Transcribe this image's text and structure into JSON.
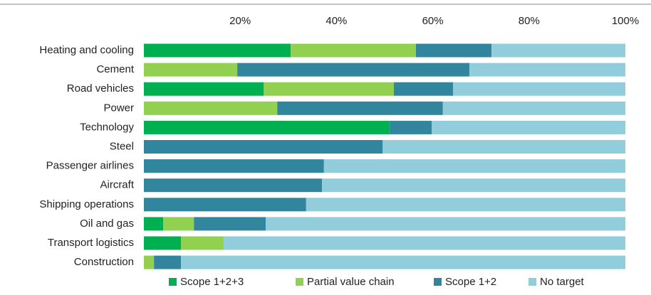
{
  "chart_data": {
    "type": "stacked-bar-horizontal",
    "categories": [
      "Heating and cooling",
      "Cement",
      "Road vehicles",
      "Power",
      "Technology",
      "Steel",
      "Passenger airlines",
      "Aircraft",
      "Shipping operations",
      "Oil and gas",
      "Transport logistics",
      "Construction"
    ],
    "series": [
      {
        "name": "Scope 1+2+3",
        "color": "#00b050",
        "values": [
          30.5,
          0,
          24.9,
          0,
          51,
          0,
          0,
          0,
          0,
          4,
          7.7,
          0
        ]
      },
      {
        "name": "Partial value chain",
        "color": "#92d050",
        "values": [
          26,
          19.4,
          27,
          27.7,
          0,
          0,
          0,
          0,
          0,
          6.4,
          8.9,
          2.1
        ]
      },
      {
        "name": "Scope 1+2",
        "color": "#31859c",
        "values": [
          15.7,
          48.2,
          12.3,
          34.4,
          8.8,
          49.6,
          37.4,
          37,
          33.7,
          14.9,
          0,
          5.6
        ]
      },
      {
        "name": "No target",
        "color": "#92cddc",
        "values": [
          27.8,
          32.4,
          35.8,
          37.9,
          40.2,
          50.4,
          62.6,
          63,
          66.3,
          74.7,
          83.4,
          92.3
        ]
      }
    ],
    "xlim": [
      0,
      100
    ],
    "xticks": [
      {
        "value": 20,
        "label": "20%"
      },
      {
        "value": 40,
        "label": "40%"
      },
      {
        "value": 60,
        "label": "60%"
      },
      {
        "value": 80,
        "label": "80%"
      },
      {
        "value": 100,
        "label": "100%"
      }
    ],
    "legend": "bottom"
  }
}
